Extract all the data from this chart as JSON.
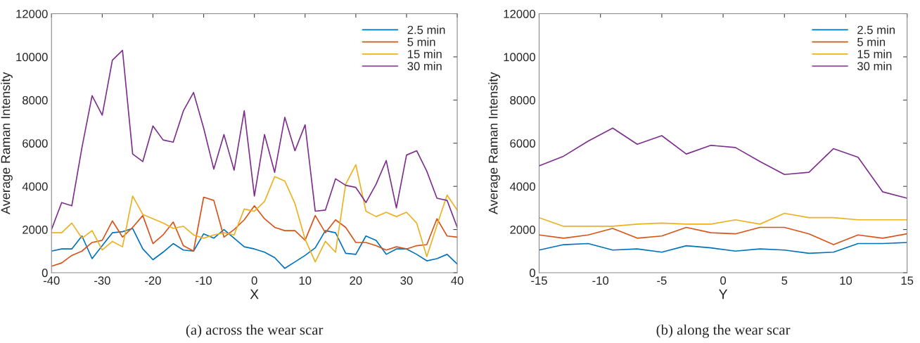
{
  "chart_data": [
    {
      "type": "line",
      "xlabel": "X",
      "ylabel": "Average Raman Intensity",
      "annotations": [
        "(a) across the wear scar"
      ],
      "x": [
        -40,
        -38,
        -36,
        -34,
        -32,
        -30,
        -28,
        -26,
        -24,
        -22,
        -20,
        -18,
        -16,
        -14,
        -12,
        -10,
        -8,
        -6,
        -4,
        -2,
        0,
        2,
        4,
        6,
        8,
        10,
        12,
        14,
        16,
        18,
        20,
        22,
        24,
        26,
        28,
        30,
        32,
        34,
        36,
        38,
        40
      ],
      "series": [
        {
          "name": "2.5 min",
          "color": "#0072bd",
          "values": [
            1000,
            1100,
            1100,
            1700,
            650,
            1250,
            1850,
            1900,
            2050,
            1100,
            600,
            950,
            1350,
            1050,
            1000,
            1800,
            1600,
            2000,
            1600,
            1200,
            1100,
            950,
            700,
            200,
            500,
            800,
            1150,
            1950,
            1850,
            900,
            850,
            1700,
            1500,
            850,
            1100,
            1100,
            850,
            550,
            650,
            850,
            400
          ]
        },
        {
          "name": "5 min",
          "color": "#d95319",
          "values": [
            300,
            450,
            800,
            1000,
            1400,
            1500,
            2400,
            1650,
            2100,
            2650,
            1350,
            1750,
            2350,
            1250,
            1000,
            3500,
            3350,
            1650,
            2000,
            2450,
            3100,
            2500,
            2100,
            1950,
            1950,
            1500,
            2650,
            1850,
            2450,
            2100,
            1400,
            1400,
            1250,
            1050,
            1200,
            1100,
            1250,
            1300,
            2500,
            1700,
            1650
          ]
        },
        {
          "name": "15 min",
          "color": "#edb120",
          "values": [
            1850,
            1850,
            2300,
            1600,
            1950,
            1050,
            1450,
            1200,
            3550,
            2700,
            2500,
            2300,
            2050,
            2150,
            1750,
            1600,
            1750,
            1850,
            1750,
            2950,
            2850,
            3300,
            4450,
            4250,
            3200,
            1550,
            500,
            1450,
            950,
            4100,
            5000,
            2850,
            2600,
            2800,
            2600,
            2800,
            2300,
            750,
            2200,
            3600,
            2900
          ]
        },
        {
          "name": "30 min",
          "color": "#7e2f8e",
          "values": [
            2000,
            3250,
            3100,
            5800,
            8200,
            7300,
            9850,
            10300,
            5500,
            5150,
            6800,
            6150,
            6050,
            7500,
            8350,
            6700,
            4800,
            6400,
            4750,
            7500,
            3550,
            6400,
            4650,
            7200,
            5650,
            6850,
            2850,
            2900,
            4350,
            4050,
            3950,
            3250,
            4100,
            5200,
            3000,
            5450,
            5650,
            4700,
            3450,
            3350,
            2100
          ]
        }
      ],
      "xlim": [
        -40,
        40
      ],
      "xticks": [
        -40,
        -30,
        -20,
        -10,
        0,
        10,
        20,
        30,
        40
      ],
      "ylim": [
        0,
        12000
      ],
      "yticks": [
        0,
        2000,
        4000,
        6000,
        8000,
        10000,
        12000
      ],
      "legend": "top right",
      "grid": false,
      "line_style": "solid",
      "marker": "none"
    },
    {
      "type": "line",
      "xlabel": "Y",
      "ylabel": "Average Raman Intensity",
      "annotations": [
        "(b) along the wear scar"
      ],
      "x": [
        -15,
        -13,
        -11,
        -9,
        -7,
        -5,
        -3,
        -1,
        1,
        3,
        5,
        7,
        9,
        11,
        13,
        15
      ],
      "series": [
        {
          "name": "2.5 min",
          "color": "#0072bd",
          "values": [
            1050,
            1300,
            1350,
            1050,
            1100,
            950,
            1250,
            1150,
            1000,
            1100,
            1050,
            900,
            950,
            1350,
            1350,
            1400
          ]
        },
        {
          "name": "5 min",
          "color": "#d95319",
          "values": [
            1750,
            1600,
            1750,
            2050,
            1600,
            1700,
            2100,
            1850,
            1800,
            2100,
            2100,
            1800,
            1300,
            1750,
            1600,
            1800
          ]
        },
        {
          "name": "15 min",
          "color": "#edb120",
          "values": [
            2550,
            2150,
            2150,
            2150,
            2250,
            2300,
            2250,
            2250,
            2450,
            2250,
            2750,
            2550,
            2550,
            2450,
            2450,
            2450
          ]
        },
        {
          "name": "30 min",
          "color": "#7e2f8e",
          "values": [
            4950,
            5400,
            6100,
            6700,
            5950,
            6350,
            5500,
            5900,
            5800,
            5150,
            4550,
            4650,
            5750,
            5350,
            3750,
            3450
          ]
        }
      ],
      "xlim": [
        -15,
        15
      ],
      "xticks": [
        -15,
        -10,
        -5,
        0,
        5,
        10,
        15
      ],
      "ylim": [
        0,
        12000
      ],
      "yticks": [
        0,
        2000,
        4000,
        6000,
        8000,
        10000,
        12000
      ],
      "legend": "top right",
      "grid": false,
      "line_style": "solid",
      "marker": "none"
    }
  ]
}
